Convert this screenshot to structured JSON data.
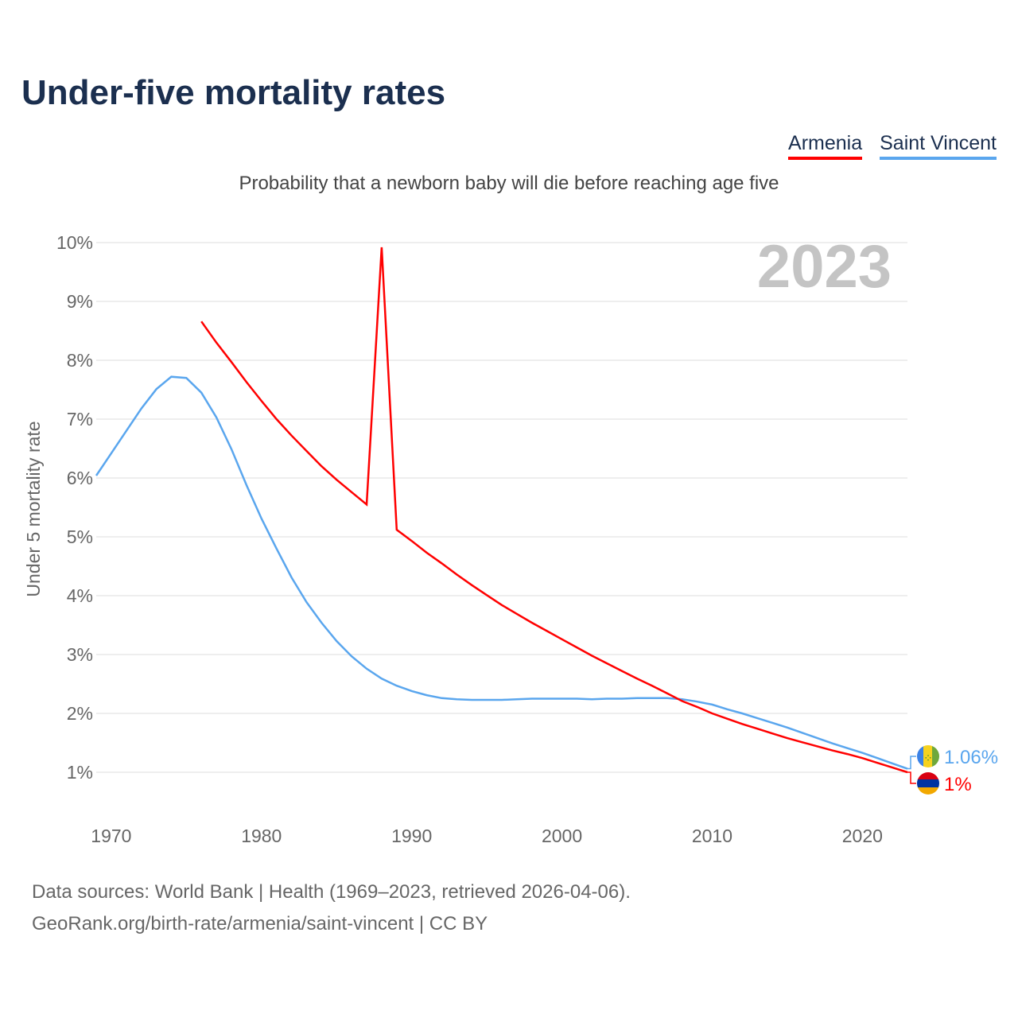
{
  "chart_data": {
    "type": "line",
    "title": "Under-five mortality rates",
    "subtitle": "Probability that a newborn baby will die before reaching age five",
    "ylabel": "Under 5 mortality rate",
    "xlabel": "",
    "year_label": "2023",
    "ylim": [
      0.3,
      10
    ],
    "xlim": [
      1969,
      2023
    ],
    "yticks": [
      1,
      2,
      3,
      4,
      5,
      6,
      7,
      8,
      9,
      10
    ],
    "ytick_labels": [
      "1%",
      "2%",
      "3%",
      "4%",
      "5%",
      "6%",
      "7%",
      "8%",
      "9%",
      "10%"
    ],
    "xticks": [
      1970,
      1980,
      1990,
      2000,
      2010,
      2020
    ],
    "xtick_labels": [
      "1970",
      "1980",
      "1990",
      "2000",
      "2010",
      "2020"
    ],
    "legend_position": "top-right",
    "series": [
      {
        "name": "Armenia",
        "color": "#ff0000",
        "end_label": "1%",
        "start_year": 1976,
        "values": [
          8.66,
          8.3,
          7.97,
          7.63,
          7.31,
          7.0,
          6.72,
          6.46,
          6.2,
          5.97,
          5.76,
          5.55,
          9.92,
          5.12,
          4.93,
          4.73,
          4.55,
          4.36,
          4.18,
          4.01,
          3.84,
          3.69,
          3.54,
          3.4,
          3.26,
          3.12,
          2.98,
          2.85,
          2.72,
          2.59,
          2.47,
          2.34,
          2.21,
          2.11,
          2.0,
          1.91,
          1.82,
          1.74,
          1.66,
          1.58,
          1.51,
          1.44,
          1.37,
          1.31,
          1.24,
          1.16,
          1.08,
          1.0
        ]
      },
      {
        "name": "Saint Vincent",
        "color": "#5aa6ee",
        "end_label": "1.06%",
        "start_year": 1969,
        "values": [
          6.04,
          6.42,
          6.8,
          7.18,
          7.51,
          7.72,
          7.7,
          7.45,
          7.03,
          6.49,
          5.88,
          5.31,
          4.8,
          4.31,
          3.89,
          3.54,
          3.23,
          2.97,
          2.76,
          2.59,
          2.47,
          2.38,
          2.31,
          2.26,
          2.24,
          2.23,
          2.23,
          2.23,
          2.24,
          2.25,
          2.25,
          2.25,
          2.25,
          2.24,
          2.25,
          2.25,
          2.26,
          2.26,
          2.26,
          2.24,
          2.2,
          2.15,
          2.07,
          2.0,
          1.92,
          1.84,
          1.76,
          1.67,
          1.58,
          1.49,
          1.41,
          1.33,
          1.24,
          1.15,
          1.06
        ]
      }
    ]
  },
  "source": {
    "line1": "Data sources: World Bank | Health (1969–2023, retrieved 2026-04-06).",
    "line2": "GeoRank.org/birth-rate/armenia/saint-vincent | CC BY"
  }
}
